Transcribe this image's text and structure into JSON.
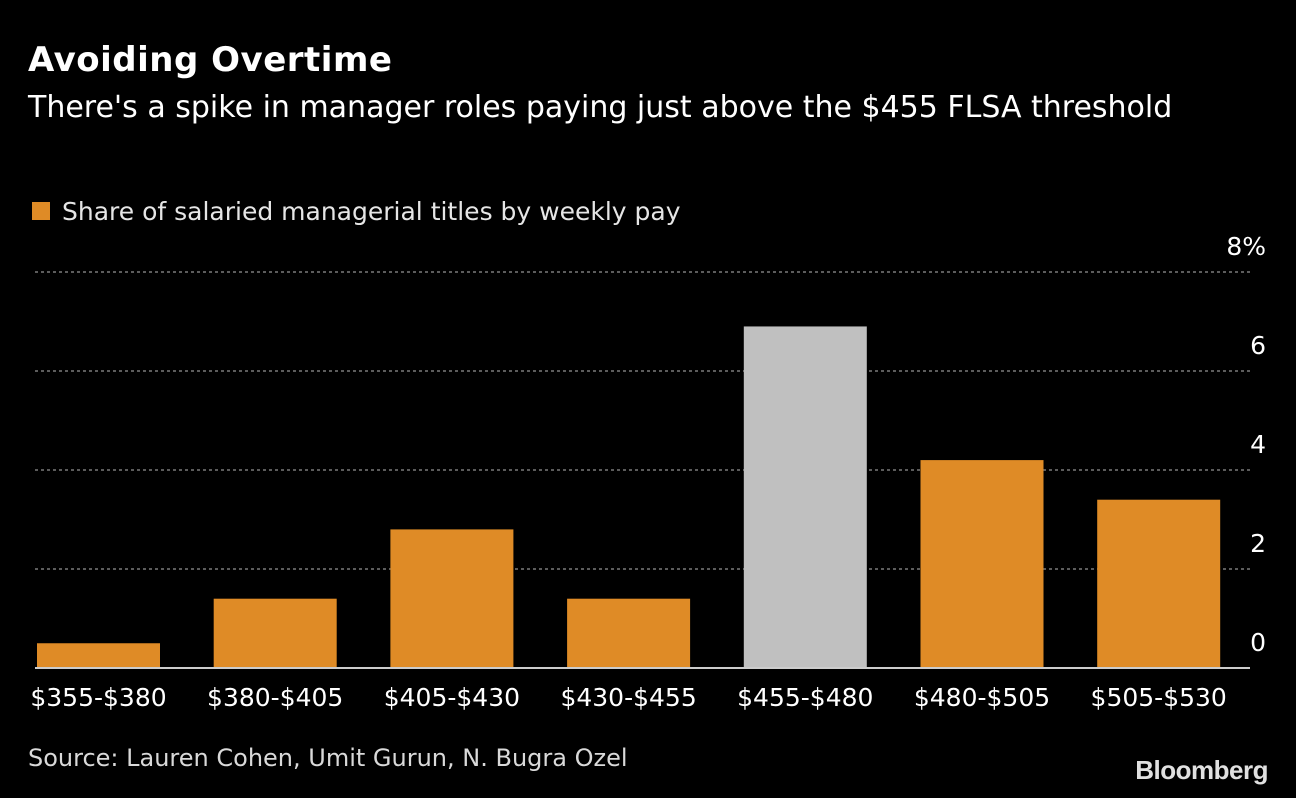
{
  "header": {
    "title": "Avoiding Overtime",
    "subtitle": "There's a spike in manager roles paying just above the $455 FLSA threshold"
  },
  "legend": {
    "label": "Share of salaried managerial titles by weekly pay"
  },
  "footer": {
    "source": "Source: Lauren Cohen, Umit Gurun, N. Bugra Ozel",
    "brand": "Bloomberg"
  },
  "colors": {
    "bar": "#df8b26",
    "highlight": "#c0c0c0",
    "gridline": "#7a7a7a",
    "axis_text": "#ffffff",
    "baseline": "#cccccc"
  },
  "chart_data": {
    "type": "bar",
    "categories": [
      "$355-$380",
      "$380-$405",
      "$405-$430",
      "$430-$455",
      "$455-$480",
      "$480-$505",
      "$505-$530"
    ],
    "values": [
      0.5,
      1.4,
      2.8,
      1.4,
      6.9,
      4.2,
      3.4
    ],
    "highlight_index": 4,
    "ylim": [
      0,
      8
    ],
    "yticks": [
      0,
      2,
      4,
      6,
      8
    ],
    "ytick_labels": [
      "0",
      "2",
      "4",
      "6",
      "8%"
    ],
    "grid": true,
    "y_axis_side": "right",
    "legend_position": "top-left"
  }
}
